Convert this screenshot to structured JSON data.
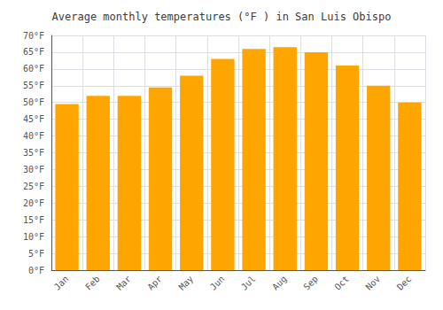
{
  "chart_data": {
    "type": "bar",
    "title": "Average monthly temperatures (°F ) in San Luis Obispo",
    "categories": [
      "Jan",
      "Feb",
      "Mar",
      "Apr",
      "May",
      "Jun",
      "Jul",
      "Aug",
      "Sep",
      "Oct",
      "Nov",
      "Dec"
    ],
    "values": [
      49.5,
      52,
      52,
      54.5,
      58,
      63,
      66,
      66.5,
      65,
      61,
      55,
      50
    ],
    "color": "#FFA500",
    "ylim": [
      0,
      70
    ],
    "yticks": [
      {
        "value": 0,
        "label": "0°F"
      },
      {
        "value": 5,
        "label": "5°F"
      },
      {
        "value": 10,
        "label": "10°F"
      },
      {
        "value": 15,
        "label": "15°F"
      },
      {
        "value": 20,
        "label": "20°F"
      },
      {
        "value": 25,
        "label": "25°F"
      },
      {
        "value": 30,
        "label": "30°F"
      },
      {
        "value": 35,
        "label": "35°F"
      },
      {
        "value": 40,
        "label": "40°F"
      },
      {
        "value": 45,
        "label": "45°F"
      },
      {
        "value": 50,
        "label": "50°F"
      },
      {
        "value": 55,
        "label": "55°F"
      },
      {
        "value": 60,
        "label": "60°F"
      },
      {
        "value": 65,
        "label": "65°F"
      },
      {
        "value": 70,
        "label": "70°F"
      }
    ],
    "grid": true
  }
}
